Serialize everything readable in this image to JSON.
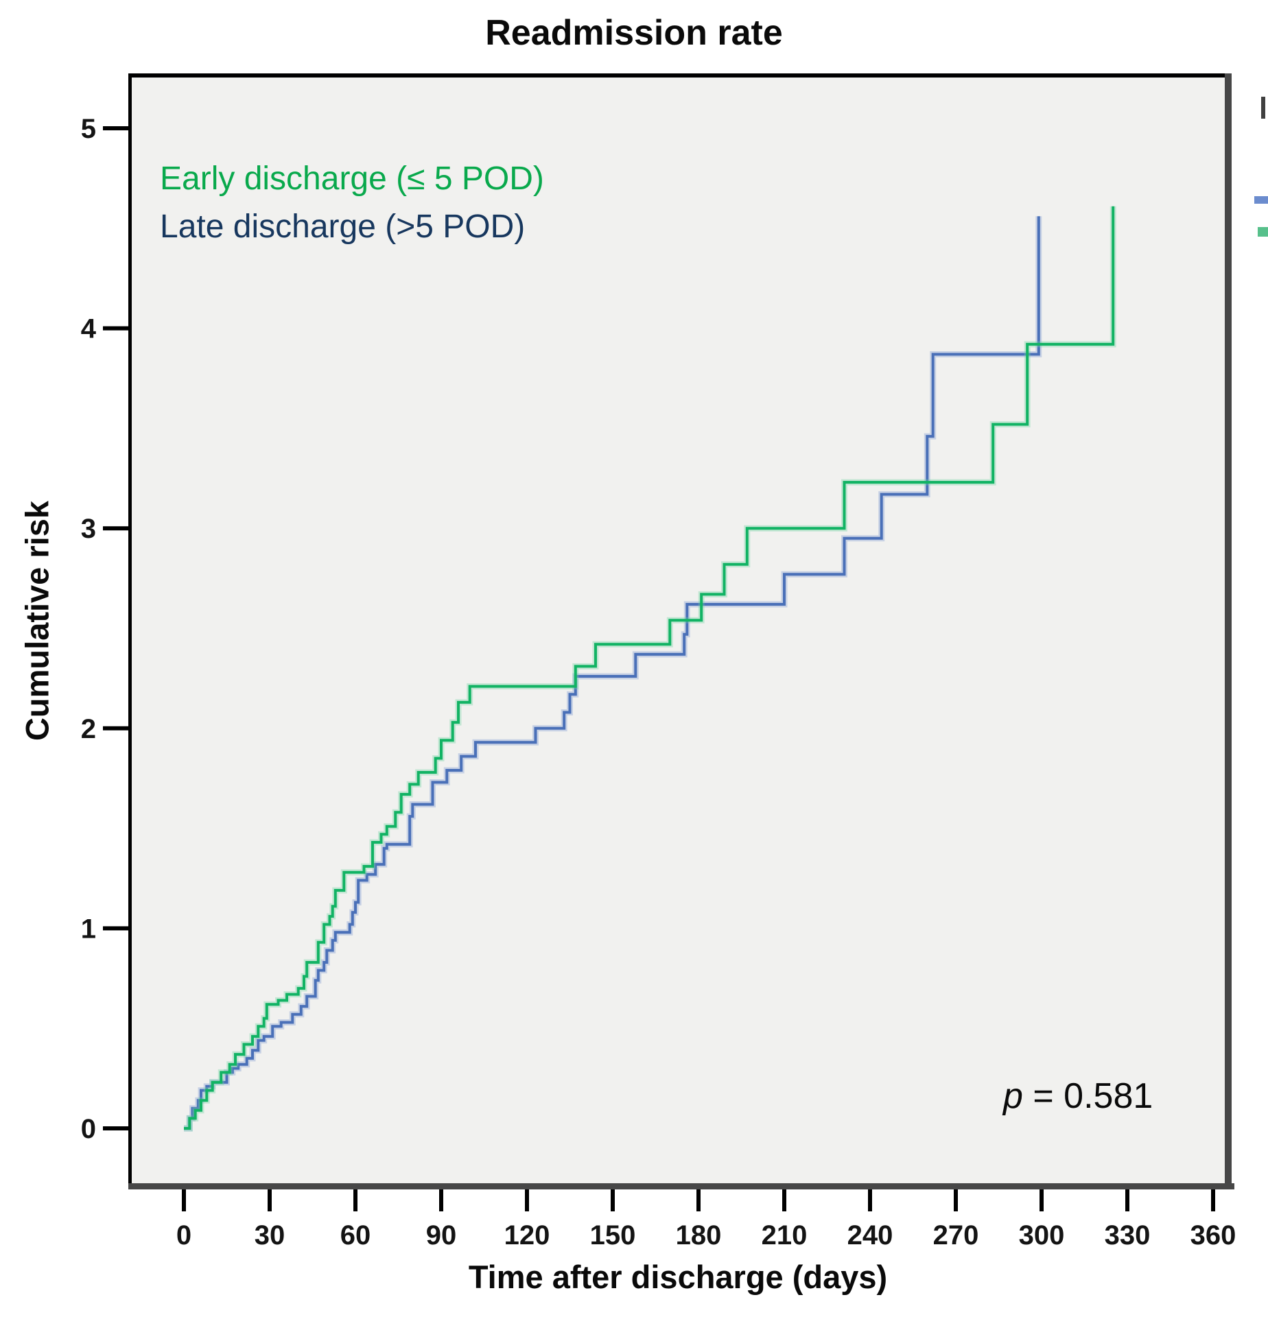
{
  "figure": {
    "title": "Readmission rate",
    "x_axis_title": "Time after discharge (days)",
    "y_axis_title": "Cumulative risk",
    "p_annotation": {
      "symbol": "p",
      "rest": " = 0.581"
    },
    "legend": [
      {
        "label": "Early discharge (≤ 5 POD)",
        "color": "#09a94c"
      },
      {
        "label": "Late discharge (>5 POD)",
        "color": "#17375e"
      }
    ]
  },
  "chart_data": {
    "type": "line",
    "subtype": "step-cumulative-incidence",
    "title": "Readmission rate",
    "xlabel": "Time after discharge (days)",
    "ylabel": "Cumulative risk",
    "xlim": [
      -19.5,
      365
    ],
    "ylim": [
      -0.28,
      5.27
    ],
    "x_ticks": [
      0,
      30,
      60,
      90,
      120,
      150,
      180,
      210,
      240,
      270,
      300,
      330,
      360
    ],
    "y_ticks": [
      0,
      1,
      2,
      3,
      4,
      5
    ],
    "grid": false,
    "legend_position": "top-left-inside",
    "annotation": "p = 0.581",
    "plot_background": "#f1f1ef",
    "frame_colors": {
      "top": "#000000",
      "left": "#000000",
      "right": "#474747",
      "bottom": "#474747"
    },
    "series": [
      {
        "name": "Late discharge (>5 POD)",
        "color": "#4a70b8",
        "halo": "rgba(120,150,210,0.35)",
        "points": [
          [
            0,
            0
          ],
          [
            2,
            0.05
          ],
          [
            3,
            0.1
          ],
          [
            5,
            0.14
          ],
          [
            6,
            0.19
          ],
          [
            8,
            0.21
          ],
          [
            10,
            0.23
          ],
          [
            15,
            0.28
          ],
          [
            17,
            0.3
          ],
          [
            19,
            0.32
          ],
          [
            22,
            0.35
          ],
          [
            24,
            0.39
          ],
          [
            26,
            0.44
          ],
          [
            28,
            0.46
          ],
          [
            31,
            0.51
          ],
          [
            34,
            0.53
          ],
          [
            38,
            0.57
          ],
          [
            41,
            0.61
          ],
          [
            43,
            0.66
          ],
          [
            46,
            0.74
          ],
          [
            47,
            0.79
          ],
          [
            49,
            0.83
          ],
          [
            50,
            0.89
          ],
          [
            52,
            0.94
          ],
          [
            53,
            0.98
          ],
          [
            58,
            1.02
          ],
          [
            59,
            1.08
          ],
          [
            60,
            1.13
          ],
          [
            61,
            1.24
          ],
          [
            64,
            1.27
          ],
          [
            67,
            1.32
          ],
          [
            70,
            1.4
          ],
          [
            71,
            1.42
          ],
          [
            79,
            1.56
          ],
          [
            80,
            1.62
          ],
          [
            87,
            1.73
          ],
          [
            92,
            1.79
          ],
          [
            97,
            1.86
          ],
          [
            102,
            1.93
          ],
          [
            123,
            2.0
          ],
          [
            133,
            2.08
          ],
          [
            135,
            2.17
          ],
          [
            137,
            2.26
          ],
          [
            158,
            2.37
          ],
          [
            175,
            2.47
          ],
          [
            176,
            2.62
          ],
          [
            210,
            2.77
          ],
          [
            231,
            2.95
          ],
          [
            244,
            3.17
          ],
          [
            260,
            3.46
          ],
          [
            262,
            3.87
          ],
          [
            299,
            4.56
          ]
        ]
      },
      {
        "name": "Early discharge (≤ 5 POD)",
        "color": "#12b364",
        "halo": "rgba(110,210,160,0.35)",
        "points": [
          [
            0,
            0
          ],
          [
            2,
            0.05
          ],
          [
            4,
            0.09
          ],
          [
            6,
            0.14
          ],
          [
            8,
            0.19
          ],
          [
            10,
            0.23
          ],
          [
            13,
            0.28
          ],
          [
            16,
            0.32
          ],
          [
            18,
            0.37
          ],
          [
            21,
            0.42
          ],
          [
            24,
            0.46
          ],
          [
            26,
            0.51
          ],
          [
            28,
            0.55
          ],
          [
            29,
            0.62
          ],
          [
            33,
            0.64
          ],
          [
            36,
            0.67
          ],
          [
            40,
            0.7
          ],
          [
            42,
            0.76
          ],
          [
            43,
            0.83
          ],
          [
            47,
            0.93
          ],
          [
            49,
            1.02
          ],
          [
            51,
            1.06
          ],
          [
            52,
            1.11
          ],
          [
            53,
            1.19
          ],
          [
            56,
            1.28
          ],
          [
            63,
            1.31
          ],
          [
            66,
            1.43
          ],
          [
            69,
            1.47
          ],
          [
            71,
            1.51
          ],
          [
            74,
            1.58
          ],
          [
            76,
            1.67
          ],
          [
            79,
            1.72
          ],
          [
            82,
            1.78
          ],
          [
            88,
            1.85
          ],
          [
            90,
            1.94
          ],
          [
            94,
            2.03
          ],
          [
            96,
            2.13
          ],
          [
            100,
            2.21
          ],
          [
            137,
            2.31
          ],
          [
            144,
            2.42
          ],
          [
            170,
            2.54
          ],
          [
            181,
            2.67
          ],
          [
            189,
            2.82
          ],
          [
            197,
            3.0
          ],
          [
            231,
            3.23
          ],
          [
            283,
            3.52
          ],
          [
            295,
            3.92
          ],
          [
            325,
            4.61
          ]
        ]
      }
    ],
    "edge_artifacts": {
      "blue_dash_color": "#6b8cce",
      "green_dash_color": "#57c08b",
      "sliver_color": "#404040"
    }
  }
}
